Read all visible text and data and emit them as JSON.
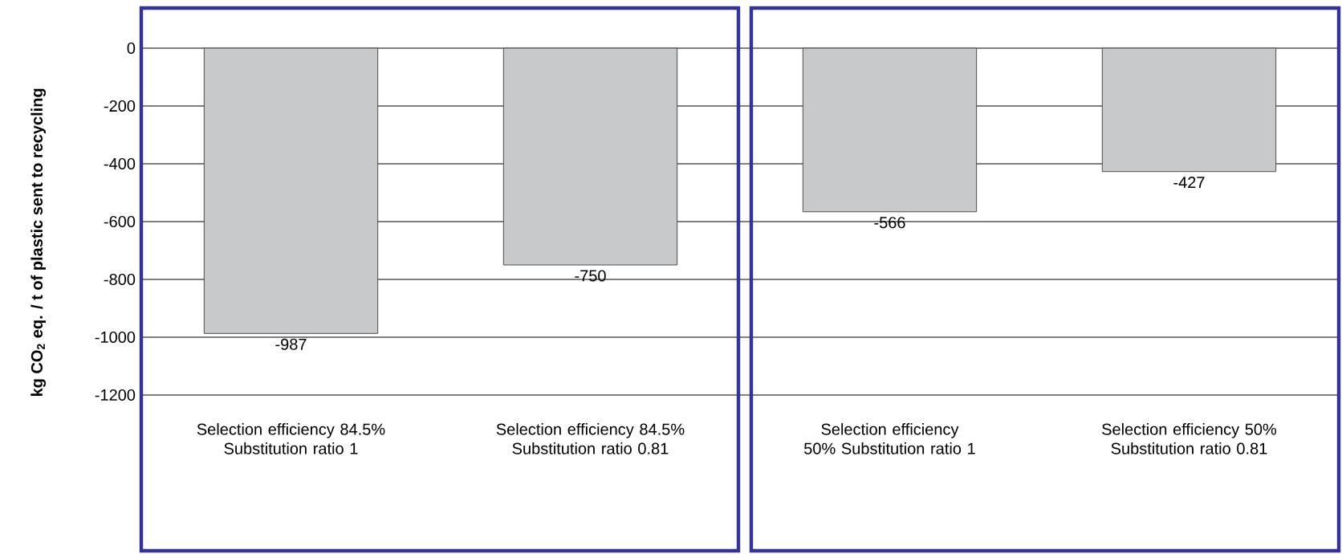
{
  "chart_data": {
    "type": "bar",
    "ylabel": "kg CO$_{2}$ eq. / t of plastic sent to recycling",
    "categories": [
      "Selection efficiency 84.5% Substitution ratio 1",
      "Selection efficiency 84.5% Substitution ratio 0.81",
      "Selection efficiency 50% Substitution ratio 1",
      "Selection efficiency 50% Substitution ratio 0.81"
    ],
    "values": [
      -987,
      -750,
      -566,
      -427
    ],
    "color": "#c8c9cb",
    "ylim": [
      -1200,
      0
    ],
    "yticks": [
      -1200,
      -1000,
      -800,
      -600,
      -400,
      -200,
      0
    ],
    "grid": "y",
    "data_labels": true
  }
}
